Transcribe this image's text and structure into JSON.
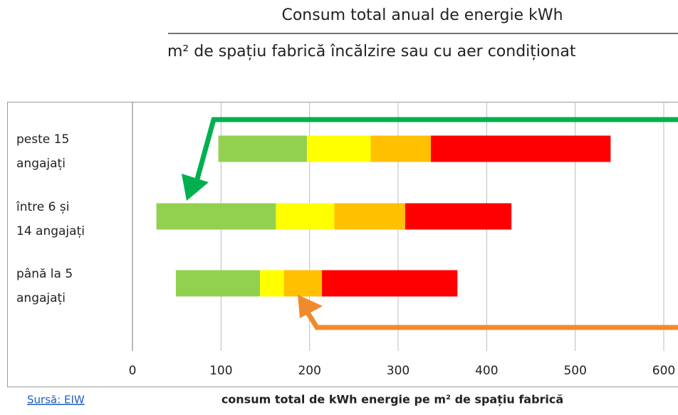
{
  "chart_data": {
    "type": "floating_stacked_bar",
    "title": "Consum total anual de energie kWh",
    "subtitle": "m² de spațiu fabrică încălzire  sau cu aer condiționat",
    "x_label": "consum total de kWh energie pe m² de spațiu fabrică",
    "source": "Sursă: EIW",
    "categories": [
      [
        "peste 15",
        "angajați"
      ],
      [
        "între 6 și",
        "14 angajați"
      ],
      [
        "până la 5",
        "angajați"
      ]
    ],
    "start": [
      97,
      27,
      49
    ],
    "series": [
      {
        "color": "#92d050",
        "values": [
          100,
          135,
          95
        ]
      },
      {
        "color": "#ffff00",
        "values": [
          72,
          66,
          27
        ]
      },
      {
        "color": "#ffc000",
        "values": [
          68,
          80,
          43
        ]
      },
      {
        "color": "#ff0000",
        "values": [
          203,
          120,
          153
        ]
      }
    ],
    "xlim": [
      0,
      600
    ],
    "xticks": [
      0,
      100,
      200,
      300,
      400,
      500,
      600
    ],
    "grid": true
  }
}
